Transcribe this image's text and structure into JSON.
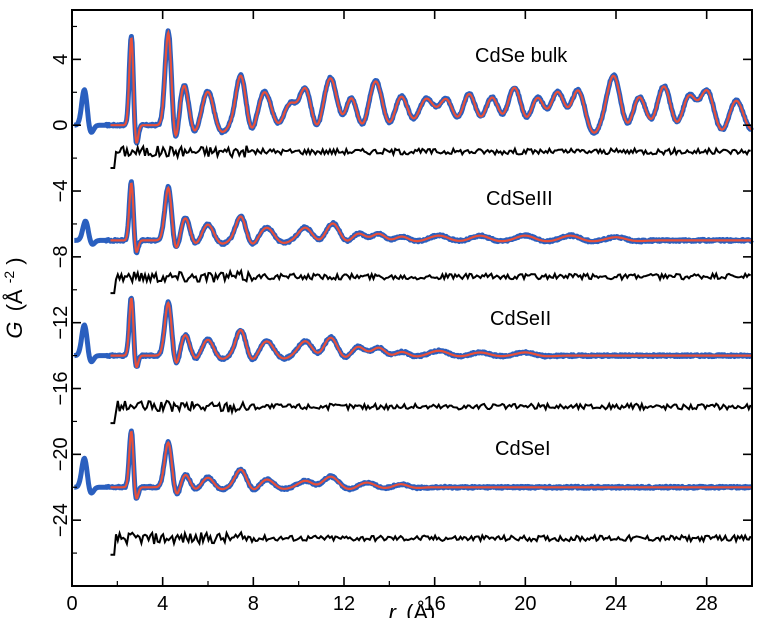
{
  "chart_data": {
    "type": "line",
    "xlabel_symbol": "r",
    "xlabel_unit": "(Å)",
    "ylabel_symbol": "G",
    "ylabel_unit_base": "(Å",
    "ylabel_unit_exp": "-2",
    "ylabel_unit_close": ")",
    "xlim": [
      0,
      30
    ],
    "ylim": [
      -28,
      7
    ],
    "x_ticks": [
      0,
      4,
      8,
      12,
      16,
      20,
      24,
      28
    ],
    "y_ticks": [
      4,
      0,
      -4,
      -8,
      -12,
      -16,
      -20,
      -24
    ],
    "y_tick_labels": [
      "4",
      "0",
      "−4",
      "−8",
      "−12",
      "−16",
      "−20",
      "−24"
    ],
    "colors": {
      "observed": "#2a5fbf",
      "calculated": "#e8503a",
      "difference": "#000000"
    },
    "panels": [
      {
        "label": "CdSe bulk",
        "offset": 0,
        "diff_offset": -1.6,
        "observed_start": 0.1,
        "peaks": [
          [
            0.55,
            2.2,
            0.12
          ],
          [
            2.62,
            5.5,
            0.09
          ],
          [
            4.25,
            5.8,
            0.14
          ],
          [
            4.95,
            2.5,
            0.2
          ],
          [
            6.0,
            2.1,
            0.25
          ],
          [
            7.45,
            3.1,
            0.22
          ],
          [
            8.5,
            2.1,
            0.3
          ],
          [
            9.6,
            1.5,
            0.3
          ],
          [
            10.3,
            2.6,
            0.25
          ],
          [
            11.4,
            3.0,
            0.3
          ],
          [
            12.3,
            2.2,
            0.25
          ],
          [
            13.4,
            2.8,
            0.3
          ],
          [
            14.5,
            2.0,
            0.3
          ],
          [
            15.6,
            1.8,
            0.35
          ],
          [
            16.5,
            2.0,
            0.3
          ],
          [
            17.5,
            2.2,
            0.3
          ],
          [
            18.5,
            2.0,
            0.3
          ],
          [
            19.5,
            2.6,
            0.3
          ],
          [
            20.5,
            2.0,
            0.3
          ],
          [
            21.4,
            2.4,
            0.3
          ],
          [
            22.3,
            2.6,
            0.3
          ],
          [
            23.9,
            3.1,
            0.3
          ],
          [
            25.0,
            2.0,
            0.3
          ],
          [
            26.1,
            2.6,
            0.3
          ],
          [
            27.2,
            2.0,
            0.3
          ],
          [
            28.0,
            2.6,
            0.3
          ],
          [
            29.3,
            1.6,
            0.3
          ]
        ]
      },
      {
        "label": "CdSeIII",
        "offset": -7,
        "diff_offset": -9.2,
        "observed_start": 0.1,
        "peaks": [
          [
            0.6,
            1.2,
            0.12
          ],
          [
            2.62,
            3.6,
            0.09
          ],
          [
            4.25,
            3.3,
            0.15
          ],
          [
            5.0,
            1.4,
            0.2
          ],
          [
            6.0,
            1.0,
            0.25
          ],
          [
            7.45,
            1.5,
            0.22
          ],
          [
            8.6,
            0.8,
            0.3
          ],
          [
            10.3,
            0.8,
            0.3
          ],
          [
            11.5,
            1.1,
            0.3
          ],
          [
            12.6,
            0.5,
            0.3
          ],
          [
            13.5,
            0.5,
            0.3
          ],
          [
            14.5,
            0.3,
            0.3
          ],
          [
            16.2,
            0.3,
            0.4
          ],
          [
            18.0,
            0.3,
            0.4
          ],
          [
            20.0,
            0.3,
            0.4
          ],
          [
            22.0,
            0.3,
            0.4
          ],
          [
            24.0,
            0.2,
            0.4
          ]
        ]
      },
      {
        "label": "CdSeII",
        "offset": -14,
        "diff_offset": -17.1,
        "observed_start": 0.1,
        "peaks": [
          [
            0.55,
            1.9,
            0.12
          ],
          [
            2.62,
            3.6,
            0.09
          ],
          [
            4.25,
            3.3,
            0.15
          ],
          [
            5.0,
            1.3,
            0.2
          ],
          [
            6.0,
            1.0,
            0.25
          ],
          [
            7.45,
            1.6,
            0.22
          ],
          [
            8.6,
            0.9,
            0.3
          ],
          [
            10.3,
            0.9,
            0.3
          ],
          [
            11.4,
            1.2,
            0.3
          ],
          [
            12.6,
            0.6,
            0.3
          ],
          [
            13.5,
            0.6,
            0.3
          ],
          [
            14.5,
            0.3,
            0.3
          ],
          [
            16.2,
            0.3,
            0.4
          ],
          [
            18.0,
            0.2,
            0.4
          ],
          [
            20.0,
            0.2,
            0.4
          ]
        ]
      },
      {
        "label": "CdSeI",
        "offset": -22,
        "diff_offset": -25.1,
        "observed_start": 0.1,
        "peaks": [
          [
            0.55,
            1.8,
            0.12
          ],
          [
            2.62,
            3.5,
            0.09
          ],
          [
            4.25,
            2.8,
            0.16
          ],
          [
            5.0,
            0.8,
            0.2
          ],
          [
            6.0,
            0.6,
            0.25
          ],
          [
            7.45,
            1.1,
            0.25
          ],
          [
            8.6,
            0.5,
            0.3
          ],
          [
            10.3,
            0.4,
            0.3
          ],
          [
            11.4,
            0.7,
            0.35
          ],
          [
            13.0,
            0.3,
            0.35
          ],
          [
            14.5,
            0.2,
            0.3
          ]
        ]
      }
    ]
  }
}
